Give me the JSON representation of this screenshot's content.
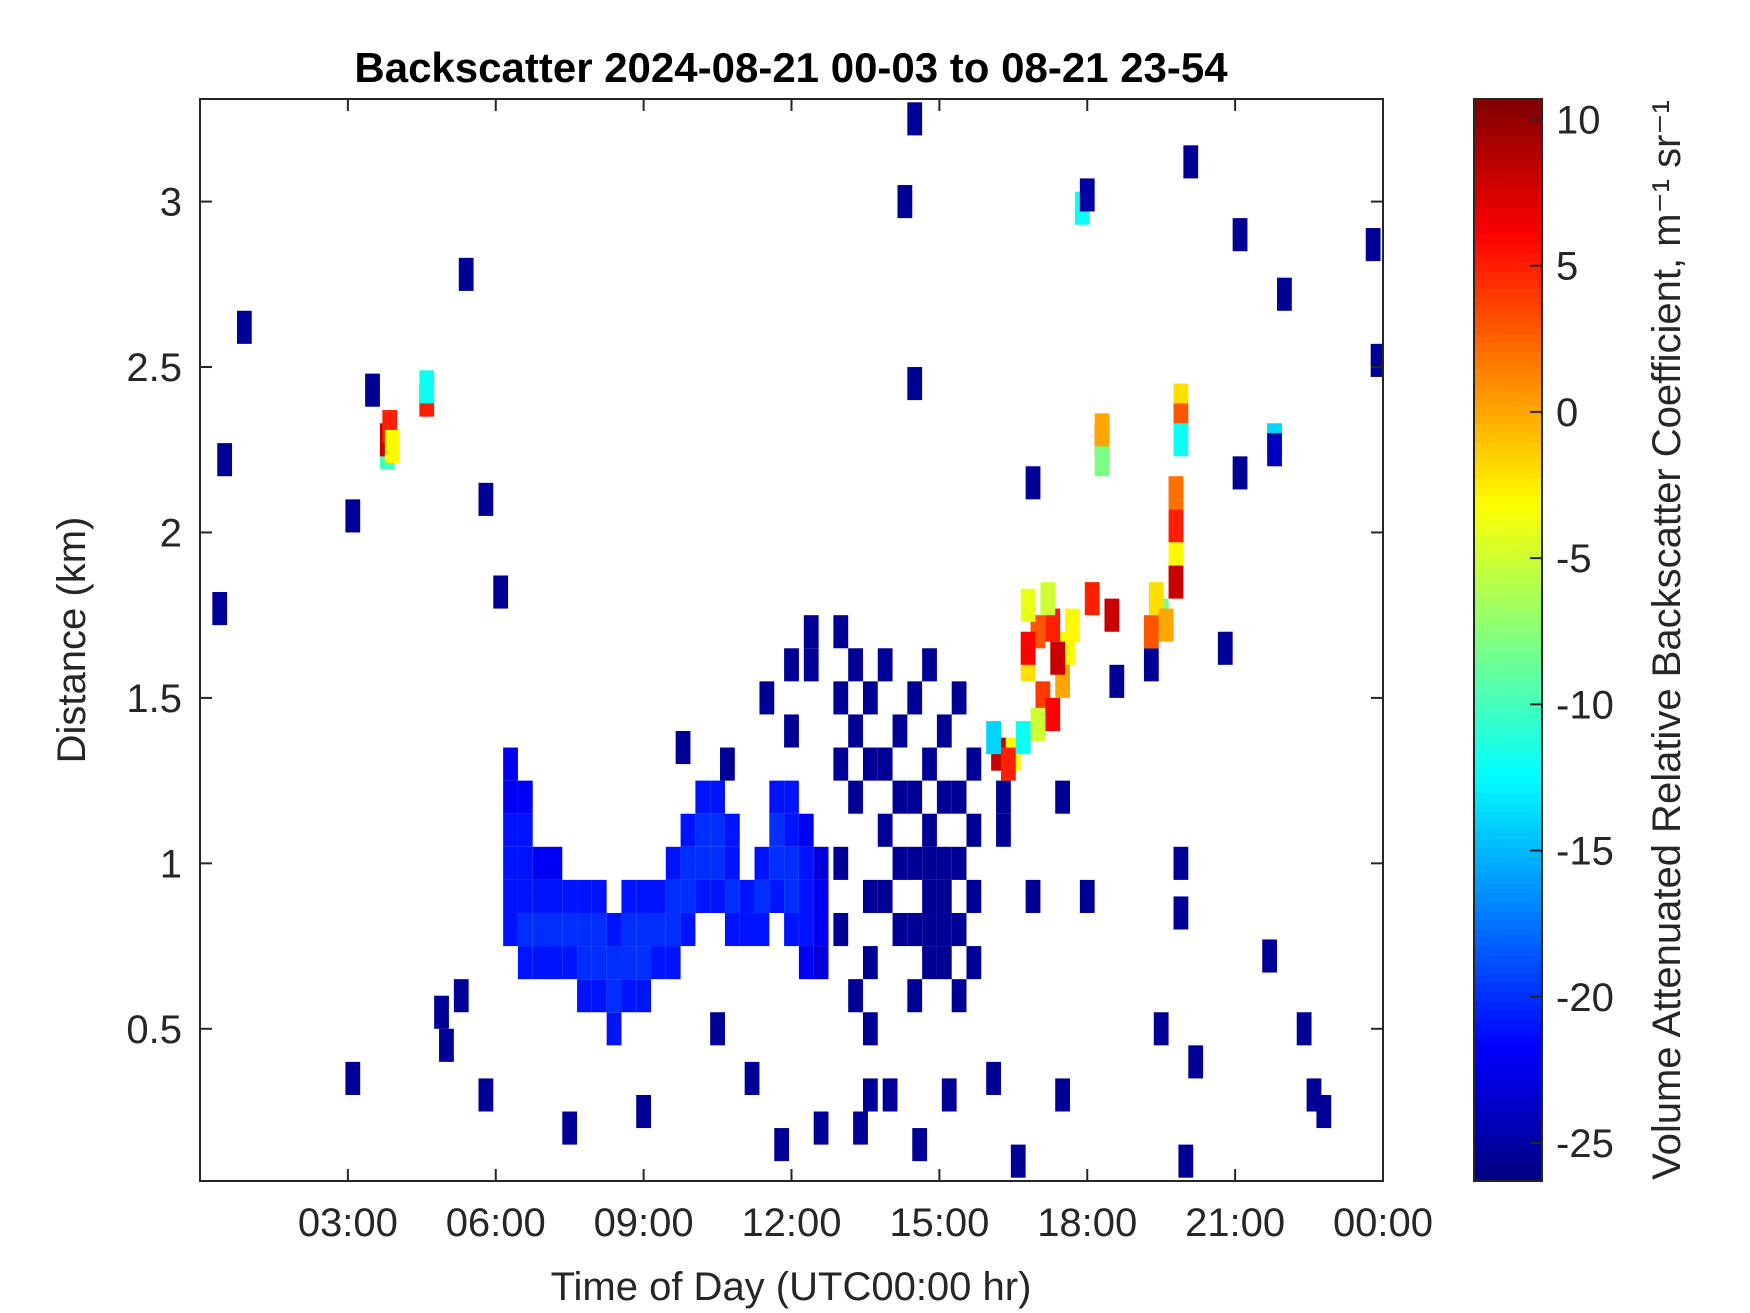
{
  "chart_data": {
    "type": "heatmap",
    "title": "Backscatter 2024-08-21 00-03 to 08-21 23-54",
    "x_label": "Time of Day (UTC00:00 hr)",
    "y_label": "Distance (km)",
    "colorbar_label": "Volume Attenuated Relative Backscatter Coefficient, m⁻¹ sr⁻¹",
    "colormap": "jet",
    "xlim": [
      0,
      24
    ],
    "xticks": [
      {
        "value": 3,
        "label": "03:00"
      },
      {
        "value": 6,
        "label": "06:00"
      },
      {
        "value": 9,
        "label": "09:00"
      },
      {
        "value": 12,
        "label": "12:00"
      },
      {
        "value": 15,
        "label": "15:00"
      },
      {
        "value": 18,
        "label": "18:00"
      },
      {
        "value": 21,
        "label": "21:00"
      },
      {
        "value": 24,
        "label": "00:00"
      }
    ],
    "ylim": [
      0.04,
      3.31
    ],
    "yticks": [
      0.5,
      1,
      1.5,
      2,
      2.5,
      3
    ],
    "clim": [
      -26.3,
      10.7
    ],
    "cticks": [
      -25,
      -20,
      -15,
      -10,
      -5,
      0,
      5,
      10
    ],
    "points": [
      [
        6.3,
        0.8,
        -21
      ],
      [
        6.3,
        0.9,
        -21
      ],
      [
        6.3,
        1.0,
        -21
      ],
      [
        6.3,
        1.1,
        -21
      ],
      [
        6.3,
        1.2,
        -22
      ],
      [
        6.3,
        1.3,
        -22
      ],
      [
        6.6,
        0.7,
        -21
      ],
      [
        6.6,
        0.8,
        -20
      ],
      [
        6.6,
        0.9,
        -21
      ],
      [
        6.6,
        1.0,
        -21
      ],
      [
        6.6,
        1.1,
        -21
      ],
      [
        6.6,
        1.2,
        -22
      ],
      [
        6.9,
        0.7,
        -21
      ],
      [
        6.9,
        0.8,
        -20
      ],
      [
        6.9,
        0.9,
        -21
      ],
      [
        6.9,
        1.0,
        -22
      ],
      [
        7.2,
        0.7,
        -21
      ],
      [
        7.2,
        0.8,
        -20
      ],
      [
        7.2,
        0.9,
        -21
      ],
      [
        7.2,
        1.0,
        -22
      ],
      [
        7.5,
        0.7,
        -21
      ],
      [
        7.5,
        0.8,
        -20
      ],
      [
        7.5,
        0.9,
        -21
      ],
      [
        7.8,
        0.6,
        -21
      ],
      [
        7.8,
        0.7,
        -20
      ],
      [
        7.8,
        0.8,
        -20
      ],
      [
        7.8,
        0.9,
        -21
      ],
      [
        8.1,
        0.6,
        -21
      ],
      [
        8.1,
        0.7,
        -20
      ],
      [
        8.1,
        0.8,
        -20
      ],
      [
        8.1,
        0.9,
        -21
      ],
      [
        8.4,
        0.5,
        -21
      ],
      [
        8.4,
        0.6,
        -20
      ],
      [
        8.4,
        0.7,
        -20
      ],
      [
        8.4,
        0.8,
        -21
      ],
      [
        8.7,
        0.6,
        -21
      ],
      [
        8.7,
        0.7,
        -20
      ],
      [
        8.7,
        0.8,
        -20
      ],
      [
        8.7,
        0.9,
        -21
      ],
      [
        9.0,
        0.6,
        -21
      ],
      [
        9.0,
        0.7,
        -20
      ],
      [
        9.0,
        0.8,
        -20
      ],
      [
        9.0,
        0.9,
        -21
      ],
      [
        9.3,
        0.7,
        -21
      ],
      [
        9.3,
        0.8,
        -20
      ],
      [
        9.3,
        0.9,
        -21
      ],
      [
        9.6,
        0.7,
        -21
      ],
      [
        9.6,
        0.8,
        -20
      ],
      [
        9.6,
        0.9,
        -20
      ],
      [
        9.6,
        1.0,
        -21
      ],
      [
        9.9,
        0.8,
        -21
      ],
      [
        9.9,
        0.9,
        -20
      ],
      [
        9.9,
        1.0,
        -20
      ],
      [
        9.9,
        1.1,
        -21
      ],
      [
        10.2,
        0.9,
        -21
      ],
      [
        10.2,
        1.0,
        -20
      ],
      [
        10.2,
        1.1,
        -20
      ],
      [
        10.2,
        1.2,
        -21
      ],
      [
        10.5,
        0.9,
        -21
      ],
      [
        10.5,
        1.0,
        -20
      ],
      [
        10.5,
        1.1,
        -20
      ],
      [
        10.5,
        1.2,
        -21
      ],
      [
        10.8,
        0.8,
        -21
      ],
      [
        10.8,
        0.9,
        -20
      ],
      [
        10.8,
        1.0,
        -21
      ],
      [
        10.8,
        1.1,
        -21
      ],
      [
        11.1,
        0.8,
        -21
      ],
      [
        11.1,
        0.9,
        -21
      ],
      [
        11.4,
        0.8,
        -21
      ],
      [
        11.4,
        0.9,
        -20
      ],
      [
        11.4,
        1.0,
        -21
      ],
      [
        11.7,
        0.9,
        -21
      ],
      [
        11.7,
        1.0,
        -20
      ],
      [
        11.7,
        1.1,
        -20
      ],
      [
        11.7,
        1.2,
        -21
      ],
      [
        12.0,
        0.8,
        -21
      ],
      [
        12.0,
        0.9,
        -20
      ],
      [
        12.0,
        1.0,
        -20
      ],
      [
        12.0,
        1.1,
        -21
      ],
      [
        12.0,
        1.2,
        -21
      ],
      [
        12.3,
        0.7,
        -22
      ],
      [
        12.3,
        0.8,
        -21
      ],
      [
        12.3,
        0.9,
        -21
      ],
      [
        12.3,
        1.0,
        -21
      ],
      [
        12.3,
        1.1,
        -22
      ],
      [
        12.6,
        0.7,
        -23
      ],
      [
        12.6,
        0.8,
        -22
      ],
      [
        12.6,
        0.9,
        -22
      ],
      [
        12.6,
        1.0,
        -23
      ],
      [
        13.0,
        0.8,
        -25.5
      ],
      [
        13.0,
        1.0,
        -25.5
      ],
      [
        13.0,
        1.3,
        -25.5
      ],
      [
        13.0,
        1.5,
        -25.5
      ],
      [
        13.0,
        1.7,
        -25.5
      ],
      [
        13.3,
        0.6,
        -25.5
      ],
      [
        13.3,
        1.2,
        -25.5
      ],
      [
        13.3,
        1.4,
        -25.5
      ],
      [
        13.3,
        1.6,
        -25.5
      ],
      [
        13.6,
        0.3,
        -25.5
      ],
      [
        13.6,
        0.5,
        -25.5
      ],
      [
        13.6,
        0.7,
        -25.5
      ],
      [
        13.6,
        0.9,
        -25.5
      ],
      [
        13.6,
        1.3,
        -25.5
      ],
      [
        13.6,
        1.5,
        -25.5
      ],
      [
        13.9,
        0.9,
        -25.5
      ],
      [
        13.9,
        1.1,
        -25.5
      ],
      [
        13.9,
        1.3,
        -25.5
      ],
      [
        13.9,
        1.6,
        -25.5
      ],
      [
        14.2,
        0.8,
        -25.5
      ],
      [
        14.2,
        1.0,
        -25.5
      ],
      [
        14.2,
        1.2,
        -25.5
      ],
      [
        14.2,
        1.4,
        -25.5
      ],
      [
        14.5,
        0.6,
        -25.5
      ],
      [
        14.5,
        0.8,
        -25.5
      ],
      [
        14.5,
        1.0,
        -25.5
      ],
      [
        14.5,
        1.2,
        -25.5
      ],
      [
        14.5,
        1.5,
        -25.5
      ],
      [
        14.8,
        0.7,
        -25.5
      ],
      [
        14.8,
        0.8,
        -25.5
      ],
      [
        14.8,
        0.9,
        -25.5
      ],
      [
        14.8,
        1.0,
        -25.5
      ],
      [
        14.8,
        1.1,
        -25.5
      ],
      [
        14.8,
        1.3,
        -25.5
      ],
      [
        14.8,
        1.6,
        -25.5
      ],
      [
        15.1,
        0.7,
        -25.5
      ],
      [
        15.1,
        0.8,
        -25.5
      ],
      [
        15.1,
        0.9,
        -25.5
      ],
      [
        15.1,
        1.0,
        -25.5
      ],
      [
        15.1,
        1.2,
        -25.5
      ],
      [
        15.1,
        1.4,
        -25.5
      ],
      [
        15.4,
        0.6,
        -25.5
      ],
      [
        15.4,
        0.8,
        -25.5
      ],
      [
        15.4,
        1.0,
        -25.5
      ],
      [
        15.4,
        1.2,
        -25.5
      ],
      [
        15.4,
        1.5,
        -25.5
      ],
      [
        15.7,
        0.7,
        -25.5
      ],
      [
        15.7,
        0.9,
        -25.5
      ],
      [
        15.7,
        1.1,
        -25.5
      ],
      [
        15.7,
        1.3,
        -25.5
      ],
      [
        12.0,
        1.4,
        -25.5
      ],
      [
        12.0,
        1.6,
        -25.5
      ],
      [
        11.5,
        1.5,
        -25.5
      ],
      [
        12.4,
        1.6,
        -25.5
      ],
      [
        12.4,
        1.7,
        -25.5
      ],
      [
        16.3,
        1.1,
        -25.5
      ],
      [
        16.3,
        1.2,
        -25.5
      ],
      [
        0.4,
        1.77,
        -25.5
      ],
      [
        0.9,
        2.62,
        -25.5
      ],
      [
        0.5,
        2.22,
        -25.5
      ],
      [
        3.1,
        2.05,
        -25.5
      ],
      [
        3.5,
        2.43,
        -25.5
      ],
      [
        5.4,
        2.78,
        -25.5
      ],
      [
        5.8,
        2.1,
        -25.5
      ],
      [
        6.1,
        1.82,
        -25.5
      ],
      [
        14.3,
        3.0,
        -25.5
      ],
      [
        14.5,
        3.25,
        -25.5
      ],
      [
        14.5,
        2.45,
        -25.5
      ],
      [
        20.1,
        3.12,
        -25.5
      ],
      [
        21.1,
        2.9,
        -25.5
      ],
      [
        22.0,
        2.72,
        -25.5
      ],
      [
        23.8,
        2.87,
        -25.5
      ],
      [
        23.9,
        2.52,
        -25.5
      ],
      [
        4.9,
        0.55,
        -25.5
      ],
      [
        5.0,
        0.45,
        -25.5
      ],
      [
        5.3,
        0.6,
        -25.5
      ],
      [
        5.8,
        0.3,
        -25.5
      ],
      [
        3.1,
        0.35,
        -25.5
      ],
      [
        7.5,
        0.2,
        -25.5
      ],
      [
        9.0,
        0.25,
        -25.5
      ],
      [
        10.5,
        0.5,
        -25.5
      ],
      [
        11.2,
        0.35,
        -25.5
      ],
      [
        11.8,
        0.15,
        -25.5
      ],
      [
        12.6,
        0.2,
        -25.5
      ],
      [
        13.4,
        0.2,
        -25.5
      ],
      [
        14.0,
        0.3,
        -25.5
      ],
      [
        14.6,
        0.15,
        -25.5
      ],
      [
        15.2,
        0.3,
        -25.5
      ],
      [
        16.1,
        0.35,
        -25.5
      ],
      [
        16.6,
        0.1,
        -25.5
      ],
      [
        17.5,
        0.3,
        -25.5
      ],
      [
        18.0,
        0.9,
        -25.5
      ],
      [
        19.5,
        0.5,
        -25.5
      ],
      [
        20.0,
        0.1,
        -25.5
      ],
      [
        20.2,
        0.4,
        -25.5
      ],
      [
        21.7,
        0.72,
        -25.5
      ],
      [
        21.1,
        2.18,
        -25.5
      ],
      [
        22.4,
        0.5,
        -25.5
      ],
      [
        22.6,
        0.3,
        -25.5
      ],
      [
        22.8,
        0.25,
        -25.5
      ],
      [
        19.9,
        1.0,
        -25.5
      ],
      [
        19.9,
        0.85,
        -25.5
      ],
      [
        19.3,
        1.6,
        -25.5
      ],
      [
        18.6,
        1.55,
        -25.5
      ],
      [
        16.9,
        0.9,
        -25.5
      ],
      [
        17.5,
        1.2,
        -25.5
      ],
      [
        9.8,
        1.35,
        -25.5
      ],
      [
        10.7,
        1.3,
        -25.5
      ],
      [
        16.9,
        2.15,
        -25.5
      ],
      [
        20.8,
        1.65,
        -25.5
      ],
      [
        3.8,
        2.24,
        -10
      ],
      [
        3.8,
        2.28,
        8
      ],
      [
        3.85,
        2.32,
        5
      ],
      [
        3.9,
        2.26,
        -3
      ],
      [
        4.6,
        2.4,
        5
      ],
      [
        4.6,
        2.44,
        -12
      ],
      [
        17.9,
        2.98,
        -12
      ],
      [
        18.0,
        3.02,
        -25
      ],
      [
        18.3,
        2.28,
        8
      ],
      [
        18.3,
        2.22,
        -8
      ],
      [
        18.3,
        2.31,
        0
      ],
      [
        19.9,
        2.4,
        -2
      ],
      [
        19.9,
        2.34,
        3
      ],
      [
        19.9,
        2.28,
        -12
      ],
      [
        21.8,
        2.28,
        -14
      ],
      [
        21.8,
        2.25,
        -24
      ],
      [
        19.8,
        2.12,
        2
      ],
      [
        19.8,
        2.02,
        5
      ],
      [
        19.8,
        1.92,
        -3
      ],
      [
        19.8,
        1.85,
        8
      ],
      [
        19.5,
        1.75,
        -8
      ],
      [
        19.3,
        1.7,
        3
      ],
      [
        19.4,
        1.8,
        -2
      ],
      [
        19.6,
        1.72,
        0
      ],
      [
        18.5,
        1.75,
        8
      ],
      [
        18.1,
        1.8,
        5
      ],
      [
        17.6,
        1.65,
        -3
      ],
      [
        17.5,
        1.55,
        0
      ],
      [
        17.3,
        1.72,
        5
      ],
      [
        17.2,
        1.8,
        -5
      ],
      [
        17.0,
        1.7,
        3
      ],
      [
        16.8,
        1.6,
        -2
      ],
      [
        16.8,
        1.65,
        6
      ],
      [
        16.8,
        1.78,
        -4
      ],
      [
        17.1,
        1.5,
        4
      ],
      [
        17.3,
        1.45,
        6
      ],
      [
        17.0,
        1.42,
        -5
      ],
      [
        16.2,
        1.33,
        8
      ],
      [
        16.5,
        1.33,
        -3
      ],
      [
        16.4,
        1.3,
        5
      ],
      [
        16.1,
        1.38,
        -14
      ],
      [
        16.7,
        1.38,
        -12
      ],
      [
        17.7,
        1.72,
        -3
      ],
      [
        17.4,
        1.62,
        8
      ]
    ]
  }
}
